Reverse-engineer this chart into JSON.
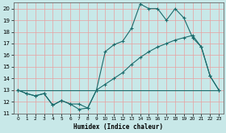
{
  "title": "",
  "xlabel": "Humidex (Indice chaleur)",
  "bg_color": "#c8e8e8",
  "line_color": "#1a6b6b",
  "grid_color": "#e8a0a0",
  "xlim": [
    -0.5,
    23.5
  ],
  "ylim": [
    11,
    20.5
  ],
  "yticks": [
    11,
    12,
    13,
    14,
    15,
    16,
    17,
    18,
    19,
    20
  ],
  "xticks": [
    0,
    1,
    2,
    3,
    4,
    5,
    6,
    7,
    8,
    9,
    10,
    11,
    12,
    13,
    14,
    15,
    16,
    17,
    18,
    19,
    20,
    21,
    22,
    23
  ],
  "line1_x": [
    0,
    1,
    2,
    3,
    4,
    5,
    6,
    7,
    8,
    9,
    10,
    11,
    12,
    13,
    14,
    15,
    16,
    17,
    18,
    19,
    20,
    21,
    22,
    23
  ],
  "line1_y": [
    13.0,
    12.7,
    12.5,
    12.7,
    11.7,
    12.1,
    11.8,
    11.35,
    11.45,
    13.0,
    16.3,
    16.9,
    17.2,
    18.3,
    20.4,
    20.0,
    20.0,
    19.0,
    20.0,
    19.2,
    17.5,
    16.7,
    14.2,
    13.0
  ],
  "line2_x": [
    0,
    1,
    2,
    3,
    4,
    5,
    6,
    7,
    8,
    9,
    10,
    11,
    12,
    13,
    14,
    15,
    16,
    17,
    18,
    19,
    20,
    21,
    22,
    23
  ],
  "line2_y": [
    13.0,
    12.7,
    12.5,
    12.7,
    11.7,
    12.1,
    11.8,
    11.8,
    11.45,
    13.0,
    13.5,
    14.0,
    14.5,
    15.2,
    15.8,
    16.3,
    16.7,
    17.0,
    17.3,
    17.5,
    17.7,
    16.7,
    14.2,
    13.0
  ],
  "line3_x": [
    0,
    9,
    23
  ],
  "line3_y": [
    13.0,
    13.0,
    13.0
  ]
}
